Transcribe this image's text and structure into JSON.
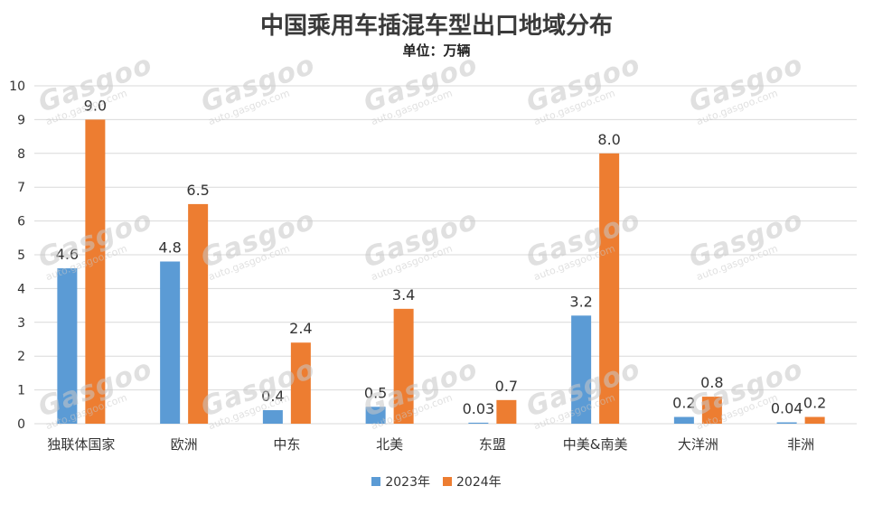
{
  "title": "中国乘用车插混车型出口地域分布",
  "subtitle": "单位：万辆",
  "colors": {
    "series_2023": "#5B9BD5",
    "series_2024": "#ED7D31",
    "grid": "#d9d9d9",
    "axis_text": "#333333"
  },
  "chart_data": {
    "type": "bar",
    "categories": [
      "独联体国家",
      "欧洲",
      "中东",
      "北美",
      "东盟",
      "中美&南美",
      "大洋洲",
      "非洲"
    ],
    "series": [
      {
        "name": "2023年",
        "values": [
          4.6,
          4.8,
          0.4,
          0.5,
          0.03,
          3.2,
          0.2,
          0.04
        ],
        "labels": [
          "4.6",
          "4.8",
          "0.4",
          "0.5",
          "0.03",
          "3.2",
          "0.2",
          "0.04"
        ]
      },
      {
        "name": "2024年",
        "values": [
          9.0,
          6.5,
          2.4,
          3.4,
          0.7,
          8.0,
          0.8,
          0.2
        ],
        "labels": [
          "9.0",
          "6.5",
          "2.4",
          "3.4",
          "0.7",
          "8.0",
          "0.8",
          "0.2"
        ]
      }
    ],
    "ylim": [
      0,
      10
    ],
    "yticks": [
      "0",
      "1",
      "2",
      "3",
      "4",
      "5",
      "6",
      "7",
      "8",
      "9",
      "10"
    ],
    "grid": true,
    "legend_position": "bottom-center"
  }
}
